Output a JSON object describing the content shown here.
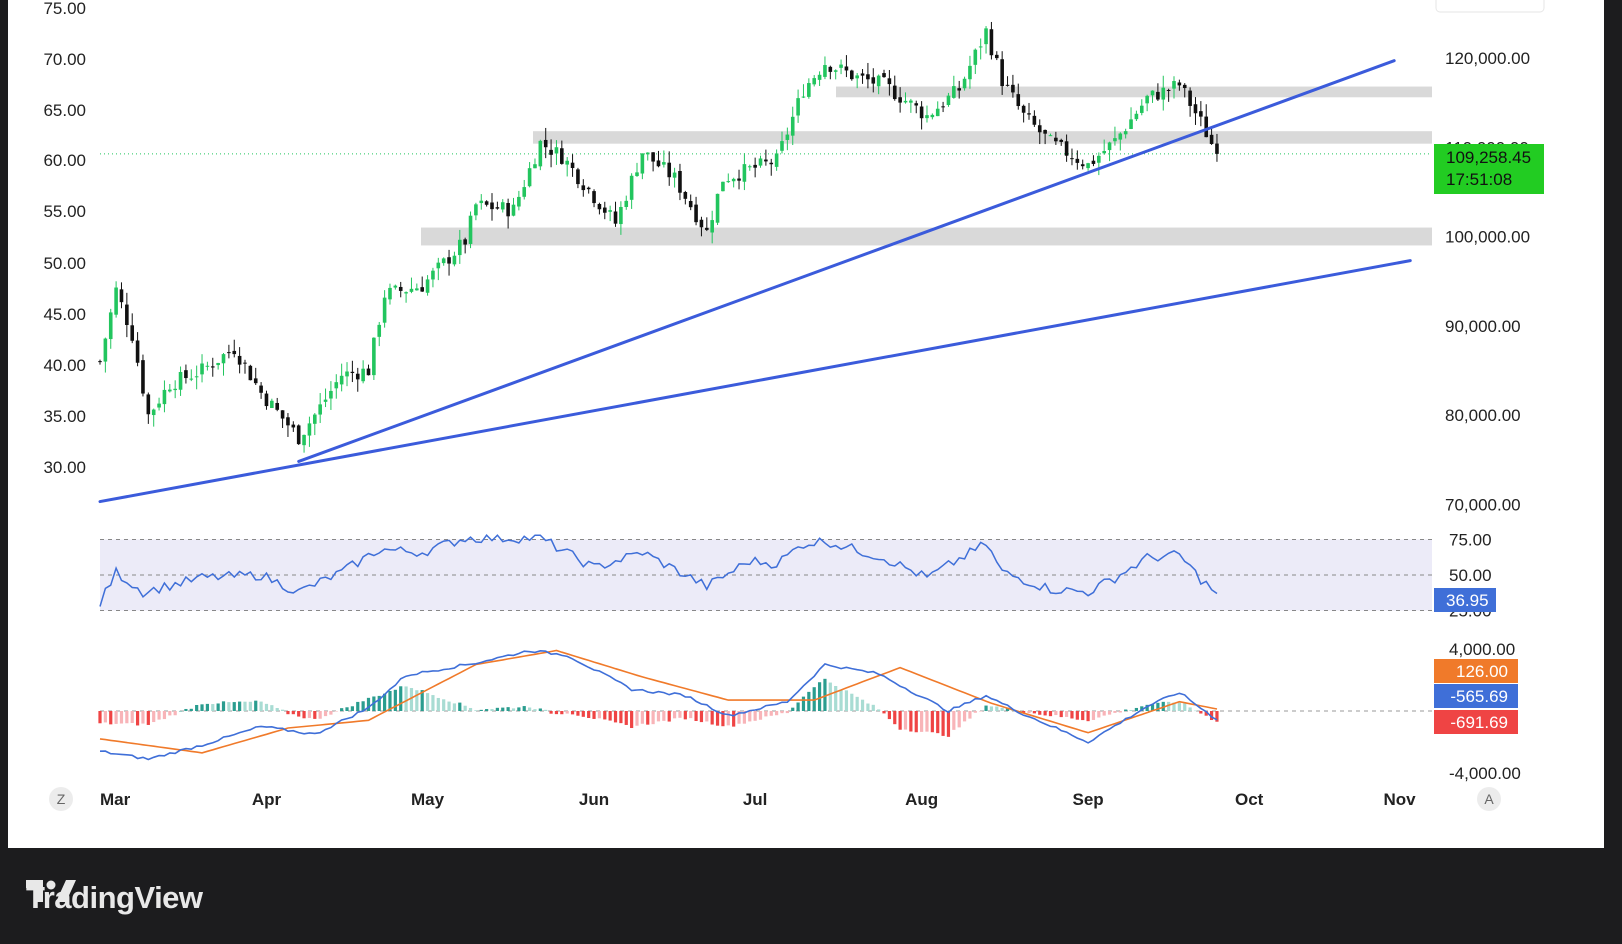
{
  "brand": {
    "name": "TradingView",
    "logo_icon": "tradingview-logo-icon"
  },
  "colors": {
    "up": "#22c55e",
    "down": "#111111",
    "trendline": "#3b5bdb",
    "zone": "#d9d9d9",
    "rsi_line": "#3f6fd8",
    "rsi_band": "#ecebf8",
    "macd_line": "#3f6fd8",
    "signal_line": "#f07a2a",
    "hist_pos": "#2a9d8f",
    "hist_pos_light": "#a8dcd3",
    "hist_neg": "#ef4444",
    "hist_neg_light": "#f8b4b8",
    "price_badge": "#22cc22",
    "signal_badge": "#f07a2a",
    "macd_badge": "#3f6fd8",
    "hist_badge": "#ef4444"
  },
  "buttons": {
    "left": "Z",
    "right": "A"
  },
  "chart_data": [
    {
      "type": "candlestick",
      "series_name": "",
      "x_labels": [
        "Mar",
        "Apr",
        "May",
        "Jun",
        "Jul",
        "Aug",
        "Sep",
        "Oct",
        "Nov"
      ],
      "left_axis_ticks": [
        "75.00",
        "70.00",
        "65.00",
        "60.00",
        "55.00",
        "50.00",
        "45.00",
        "40.00",
        "35.00",
        "30.00"
      ],
      "right_axis_ticks": [
        "120,000.00",
        "110,000.00",
        "100,000.00",
        "90,000.00",
        "80,000.00",
        "70,000.00"
      ],
      "ylim": [
        70000,
        123000
      ],
      "current_price": "109,258.45",
      "countdown": "17:51:08",
      "anchors": [
        {
          "date": "2025-03-01",
          "close": 86000
        },
        {
          "date": "2025-03-04",
          "close": 94000
        },
        {
          "date": "2025-03-07",
          "close": 89000
        },
        {
          "date": "2025-03-10",
          "close": 80000
        },
        {
          "date": "2025-03-14",
          "close": 83500
        },
        {
          "date": "2025-03-20",
          "close": 85000
        },
        {
          "date": "2025-03-26",
          "close": 87500
        },
        {
          "date": "2025-03-31",
          "close": 82500
        },
        {
          "date": "2025-04-07",
          "close": 77500
        },
        {
          "date": "2025-04-10",
          "close": 80000
        },
        {
          "date": "2025-04-15",
          "close": 84500
        },
        {
          "date": "2025-04-20",
          "close": 85000
        },
        {
          "date": "2025-04-23",
          "close": 93500
        },
        {
          "date": "2025-04-30",
          "close": 94500
        },
        {
          "date": "2025-05-08",
          "close": 99500
        },
        {
          "date": "2025-05-10",
          "close": 103500
        },
        {
          "date": "2025-05-17",
          "close": 103000
        },
        {
          "date": "2025-05-22",
          "close": 110500
        },
        {
          "date": "2025-05-26",
          "close": 109000
        },
        {
          "date": "2025-06-01",
          "close": 104500
        },
        {
          "date": "2025-06-05",
          "close": 101500
        },
        {
          "date": "2025-06-10",
          "close": 109500
        },
        {
          "date": "2025-06-16",
          "close": 106500
        },
        {
          "date": "2025-06-22",
          "close": 100500
        },
        {
          "date": "2025-06-25",
          "close": 106500
        },
        {
          "date": "2025-06-30",
          "close": 107500
        },
        {
          "date": "2025-07-05",
          "close": 108500
        },
        {
          "date": "2025-07-10",
          "close": 116500
        },
        {
          "date": "2025-07-14",
          "close": 119500
        },
        {
          "date": "2025-07-20",
          "close": 117800
        },
        {
          "date": "2025-07-25",
          "close": 117000
        },
        {
          "date": "2025-08-02",
          "close": 113500
        },
        {
          "date": "2025-08-08",
          "close": 116500
        },
        {
          "date": "2025-08-13",
          "close": 123000
        },
        {
          "date": "2025-08-16",
          "close": 117500
        },
        {
          "date": "2025-08-20",
          "close": 113500
        },
        {
          "date": "2025-08-25",
          "close": 110500
        },
        {
          "date": "2025-09-01",
          "close": 108000
        },
        {
          "date": "2025-09-06",
          "close": 110700
        },
        {
          "date": "2025-09-12",
          "close": 115500
        },
        {
          "date": "2025-09-18",
          "close": 117000
        },
        {
          "date": "2025-09-22",
          "close": 112800
        },
        {
          "date": "2025-09-25",
          "close": 109258
        }
      ],
      "support_resistance_zones": [
        [
          115600,
          116800
        ],
        [
          110400,
          111800
        ],
        [
          99000,
          101000
        ]
      ],
      "trendlines": [
        {
          "from": {
            "date": "2025-03-01",
            "price": 70300
          },
          "to": {
            "date": "2025-10-31",
            "price": 97300
          }
        },
        {
          "from": {
            "date": "2025-04-07",
            "price": 74800
          },
          "to": {
            "date": "2025-10-28",
            "price": 119700
          }
        }
      ]
    },
    {
      "type": "line",
      "series_name": "",
      "ticks": [
        "75.00",
        "50.00",
        "25.00"
      ],
      "ylim": [
        25,
        75
      ],
      "band": [
        30,
        70
      ],
      "current_value": "36.95",
      "anchors": [
        {
          "date": "2025-03-01",
          "value": 30
        },
        {
          "date": "2025-03-04",
          "value": 52
        },
        {
          "date": "2025-03-09",
          "value": 38
        },
        {
          "date": "2025-03-20",
          "value": 48
        },
        {
          "date": "2025-03-31",
          "value": 50
        },
        {
          "date": "2025-04-07",
          "value": 38
        },
        {
          "date": "2025-04-15",
          "value": 52
        },
        {
          "date": "2025-04-22",
          "value": 68
        },
        {
          "date": "2025-04-30",
          "value": 66
        },
        {
          "date": "2025-05-08",
          "value": 76
        },
        {
          "date": "2025-05-22",
          "value": 76
        },
        {
          "date": "2025-06-01",
          "value": 55
        },
        {
          "date": "2025-06-10",
          "value": 66
        },
        {
          "date": "2025-06-22",
          "value": 42
        },
        {
          "date": "2025-06-30",
          "value": 60
        },
        {
          "date": "2025-07-05",
          "value": 58
        },
        {
          "date": "2025-07-10",
          "value": 72
        },
        {
          "date": "2025-07-14",
          "value": 74
        },
        {
          "date": "2025-07-25",
          "value": 62
        },
        {
          "date": "2025-08-02",
          "value": 48
        },
        {
          "date": "2025-08-13",
          "value": 72
        },
        {
          "date": "2025-08-16",
          "value": 52
        },
        {
          "date": "2025-08-25",
          "value": 40
        },
        {
          "date": "2025-09-01",
          "value": 38
        },
        {
          "date": "2025-09-06",
          "value": 48
        },
        {
          "date": "2025-09-12",
          "value": 62
        },
        {
          "date": "2025-09-18",
          "value": 64
        },
        {
          "date": "2025-09-22",
          "value": 47
        },
        {
          "date": "2025-09-25",
          "value": 36.95
        }
      ]
    },
    {
      "type": "line+bar",
      "series_name": "",
      "ticks": [
        "4,000.00",
        "-4,000.00"
      ],
      "ylim": [
        -4200,
        4200
      ],
      "values_shown": {
        "signal": "126.00",
        "macd": "-565.69",
        "histogram": "-691.69"
      },
      "macd_anchors": [
        {
          "date": "2025-03-01",
          "value": -2600
        },
        {
          "date": "2025-03-10",
          "value": -3100
        },
        {
          "date": "2025-03-20",
          "value": -2200
        },
        {
          "date": "2025-03-31",
          "value": -1000
        },
        {
          "date": "2025-04-10",
          "value": -1500
        },
        {
          "date": "2025-04-20",
          "value": 200
        },
        {
          "date": "2025-04-27",
          "value": 2300
        },
        {
          "date": "2025-05-10",
          "value": 3100
        },
        {
          "date": "2025-05-20",
          "value": 3900
        },
        {
          "date": "2025-05-27",
          "value": 3600
        },
        {
          "date": "2025-06-08",
          "value": 1400
        },
        {
          "date": "2025-06-18",
          "value": 1000
        },
        {
          "date": "2025-06-26",
          "value": -300
        },
        {
          "date": "2025-07-07",
          "value": 600
        },
        {
          "date": "2025-07-14",
          "value": 3000
        },
        {
          "date": "2025-07-24",
          "value": 2400
        },
        {
          "date": "2025-08-06",
          "value": 0
        },
        {
          "date": "2025-08-13",
          "value": 1000
        },
        {
          "date": "2025-08-20",
          "value": -200
        },
        {
          "date": "2025-09-01",
          "value": -2000
        },
        {
          "date": "2025-09-12",
          "value": 300
        },
        {
          "date": "2025-09-18",
          "value": 1200
        },
        {
          "date": "2025-09-25",
          "value": -565.69
        }
      ],
      "signal_anchors": [
        {
          "date": "2025-03-01",
          "value": -1800
        },
        {
          "date": "2025-03-20",
          "value": -2700
        },
        {
          "date": "2025-04-05",
          "value": -1100
        },
        {
          "date": "2025-04-20",
          "value": -600
        },
        {
          "date": "2025-05-10",
          "value": 3000
        },
        {
          "date": "2025-05-25",
          "value": 3900
        },
        {
          "date": "2025-06-10",
          "value": 2200
        },
        {
          "date": "2025-06-26",
          "value": 700
        },
        {
          "date": "2025-07-12",
          "value": 700
        },
        {
          "date": "2025-07-28",
          "value": 2800
        },
        {
          "date": "2025-08-14",
          "value": 500
        },
        {
          "date": "2025-09-01",
          "value": -1400
        },
        {
          "date": "2025-09-18",
          "value": 600
        },
        {
          "date": "2025-09-25",
          "value": 126
        }
      ]
    }
  ]
}
